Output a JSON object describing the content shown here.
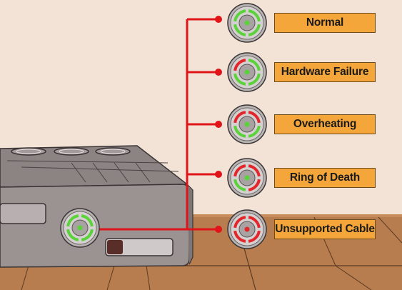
{
  "statuses": [
    {
      "label": "Normal",
      "quadrants": [
        "green",
        "green",
        "green",
        "green"
      ],
      "center": "green"
    },
    {
      "label": "Hardware Failure",
      "quadrants": [
        "red",
        "green",
        "green",
        "green"
      ],
      "center": "green"
    },
    {
      "label": "Overheating",
      "quadrants": [
        "red",
        "red",
        "green",
        "green"
      ],
      "center": "green"
    },
    {
      "label": "Ring of Death",
      "quadrants": [
        "red",
        "red",
        "red",
        "green"
      ],
      "center": "green"
    },
    {
      "label": "Unsupported Cable",
      "quadrants": [
        "red",
        "red",
        "red",
        "red"
      ],
      "center": "red"
    }
  ],
  "colors": {
    "wall": "#f2e3d6",
    "shelf": "#b87d4f",
    "connector": "#e1141a",
    "label_fill": "#f5a63a",
    "light_green": "#5ad23a",
    "light_red": "#e3262b"
  }
}
